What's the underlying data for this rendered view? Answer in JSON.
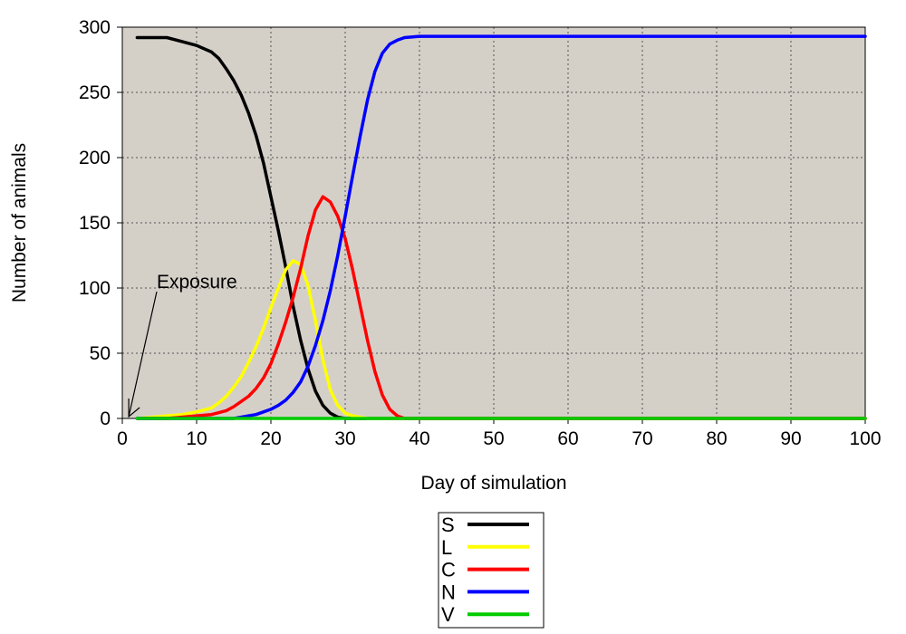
{
  "chart_data": {
    "type": "line",
    "xlabel": "Day of simulation",
    "ylabel": "Number of animals",
    "xlim": [
      0,
      100
    ],
    "ylim": [
      0,
      300
    ],
    "xticks": [
      0,
      10,
      20,
      30,
      40,
      50,
      60,
      70,
      80,
      90,
      100
    ],
    "yticks": [
      0,
      50,
      100,
      150,
      200,
      250,
      300
    ],
    "grid": true,
    "plot_background": "#d4d0c8",
    "legend_position": "below",
    "annotation": {
      "text": "Exposure",
      "x": 0.5,
      "y": 0
    },
    "series": [
      {
        "name": "S",
        "color": "#000000",
        "x": [
          2,
          4,
          6,
          8,
          10,
          12,
          13,
          14,
          15,
          16,
          17,
          18,
          19,
          20,
          21,
          22,
          23,
          24,
          25,
          26,
          27,
          28,
          29,
          30,
          32,
          34,
          40,
          60,
          80,
          100
        ],
        "y": [
          292,
          292,
          292,
          289,
          286,
          281,
          276,
          268,
          259,
          248,
          234,
          217,
          196,
          170,
          144,
          116,
          86,
          60,
          38,
          21,
          10,
          4,
          1,
          0,
          0,
          0,
          0,
          0,
          0,
          0
        ]
      },
      {
        "name": "L",
        "color": "#ffff00",
        "x": [
          2,
          4,
          6,
          8,
          10,
          12,
          13,
          14,
          15,
          16,
          17,
          18,
          19,
          20,
          21,
          22,
          23,
          24,
          25,
          26,
          27,
          28,
          29,
          30,
          31,
          32,
          33,
          34,
          36,
          40,
          60,
          100
        ],
        "y": [
          0,
          1,
          2,
          3,
          5,
          8,
          12,
          17,
          24,
          32,
          43,
          55,
          69,
          85,
          100,
          114,
          121,
          118,
          102,
          75,
          45,
          22,
          10,
          4,
          2,
          1,
          0,
          0,
          0,
          0,
          0,
          0
        ]
      },
      {
        "name": "C",
        "color": "#ff0000",
        "x": [
          2,
          6,
          8,
          10,
          12,
          14,
          15,
          16,
          17,
          18,
          19,
          20,
          21,
          22,
          23,
          24,
          25,
          26,
          27,
          28,
          29,
          30,
          31,
          32,
          33,
          34,
          35,
          36,
          37,
          38,
          40,
          60,
          100
        ],
        "y": [
          0,
          0,
          1,
          2,
          3,
          6,
          9,
          13,
          17,
          23,
          31,
          42,
          57,
          74,
          93,
          115,
          140,
          160,
          170,
          166,
          155,
          138,
          114,
          87,
          60,
          36,
          18,
          7,
          2,
          0,
          0,
          0,
          0
        ]
      },
      {
        "name": "N",
        "color": "#0000ff",
        "x": [
          2,
          10,
          15,
          16,
          17,
          18,
          19,
          20,
          21,
          22,
          23,
          24,
          25,
          26,
          27,
          28,
          29,
          30,
          31,
          32,
          33,
          34,
          35,
          36,
          37,
          38,
          40,
          50,
          60,
          80,
          100
        ],
        "y": [
          0,
          0,
          0,
          1,
          2,
          3,
          5,
          7,
          10,
          14,
          20,
          28,
          40,
          56,
          75,
          98,
          125,
          155,
          186,
          216,
          244,
          266,
          280,
          287,
          290,
          292,
          293,
          293,
          293,
          293,
          293
        ]
      },
      {
        "name": "V",
        "color": "#00cc00",
        "x": [
          2,
          100
        ],
        "y": [
          0,
          0
        ]
      }
    ]
  }
}
